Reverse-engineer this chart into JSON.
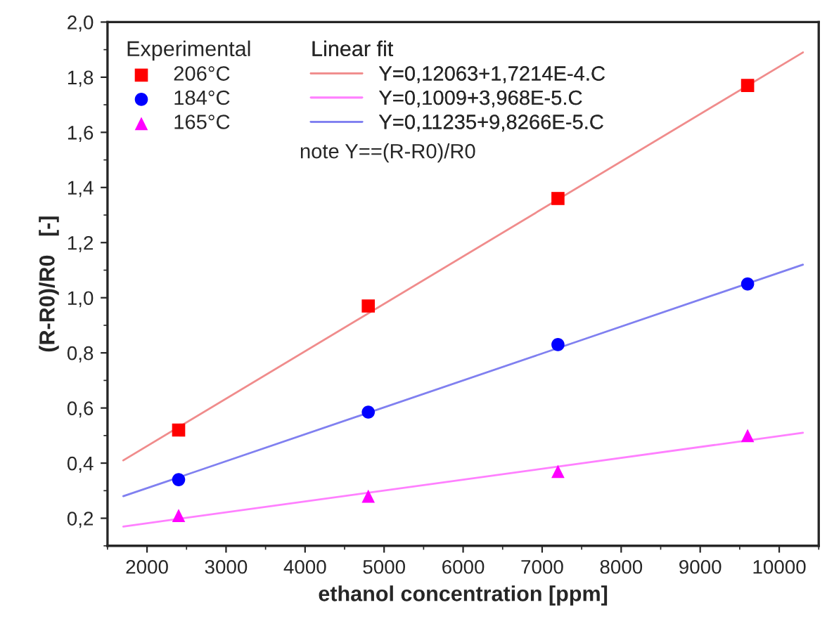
{
  "chart_data": {
    "type": "scatter",
    "xlabel": "ethanol concentration [ppm]",
    "ylabel": "(R-R0)/R0   [-]",
    "legend_title": [
      "Experimental",
      "Linear fit"
    ],
    "annotations": [
      "note Y==(R-R0)/R0"
    ],
    "xlim": [
      1500,
      10500
    ],
    "xticks": [
      2000,
      3000,
      4000,
      5000,
      6000,
      7000,
      8000,
      9000,
      10000
    ],
    "ylim": [
      0.1,
      2.0
    ],
    "yticks": [
      {
        "value": 0.2,
        "label": "0,2"
      },
      {
        "value": 0.4,
        "label": "0,4"
      },
      {
        "value": 0.6,
        "label": "0,6"
      },
      {
        "value": 0.8,
        "label": "0,8"
      },
      {
        "value": 1.0,
        "label": "1,0"
      },
      {
        "value": 1.2,
        "label": "1,2"
      },
      {
        "value": 1.4,
        "label": "1,4"
      },
      {
        "value": 1.6,
        "label": "1,6"
      },
      {
        "value": 1.8,
        "label": "1,8"
      },
      {
        "value": 2.0,
        "label": "2,0"
      }
    ],
    "legend": "top left",
    "grid": false,
    "series": [
      {
        "name": "206°C",
        "color": "#ff0000",
        "marker": "square",
        "x": [
          2400,
          4800,
          7200,
          9600
        ],
        "values": [
          0.52,
          0.97,
          1.36,
          1.77
        ]
      },
      {
        "name": "184°C",
        "color": "#0000ff",
        "marker": "circle",
        "x": [
          2400,
          4800,
          7200,
          9600
        ],
        "values": [
          0.34,
          0.585,
          0.83,
          1.05
        ]
      },
      {
        "name": "165°C",
        "color": "#ff00ff",
        "marker": "triangle",
        "x": [
          2400,
          4800,
          7200,
          9600
        ],
        "values": [
          0.21,
          0.28,
          0.37,
          0.5
        ]
      },
      {
        "type": "line",
        "name": "Y=0,12063+1,7214E-4.C",
        "color": "#f08c8c",
        "line_style": "solid",
        "x": [
          1700,
          10300
        ],
        "values": [
          0.41,
          1.89
        ]
      },
      {
        "type": "line",
        "name": "Y=0,1009+3,968E-5.C",
        "color": "#ff80ff",
        "line_style": "solid",
        "x": [
          1700,
          10300
        ],
        "values": [
          0.17,
          0.51
        ]
      },
      {
        "type": "line",
        "name": "Y=0,11235+9,8266E-5.C",
        "color": "#8080f0",
        "line_style": "solid",
        "x": [
          1700,
          10300
        ],
        "values": [
          0.28,
          1.12
        ]
      }
    ]
  }
}
